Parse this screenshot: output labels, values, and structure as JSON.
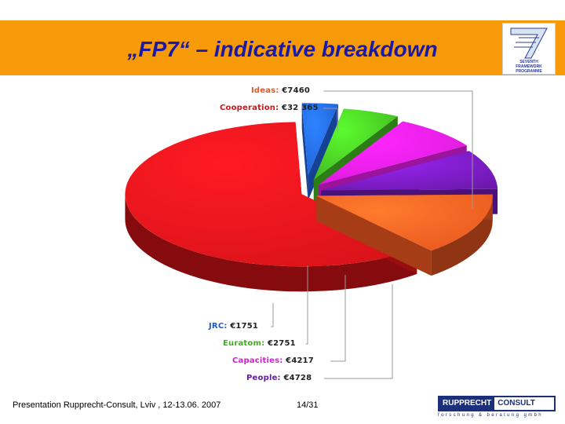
{
  "slide": {
    "title": "„FP7“ – indicative breakdown",
    "footer": "Presentation Rupprecht-Consult, Lviv , 12-13.06. 2007",
    "page": "14/31"
  },
  "logo": {
    "text": "SEVENTH FRAMEWORK PROGRAMME"
  },
  "company": {
    "name_left": "RUPPRECHT",
    "name_right": "CONSULT",
    "tagline": "forschung & beratung gmbh"
  },
  "chart_data": {
    "type": "pie",
    "categories": [
      "Ideas",
      "Cooperation",
      "JRC",
      "Euratom",
      "Capacities",
      "People"
    ],
    "values": [
      7460,
      32365,
      1751,
      2751,
      4217,
      4728
    ],
    "value_labels": [
      "€7460",
      "€32 365",
      "€1751",
      "€2751",
      "€4217",
      "€4728"
    ],
    "colors": [
      "#e8551f",
      "#d61218",
      "#1f5bd0",
      "#3fae1f",
      "#d81ad8",
      "#6a18a8"
    ],
    "exploded": true,
    "style": "3d"
  }
}
